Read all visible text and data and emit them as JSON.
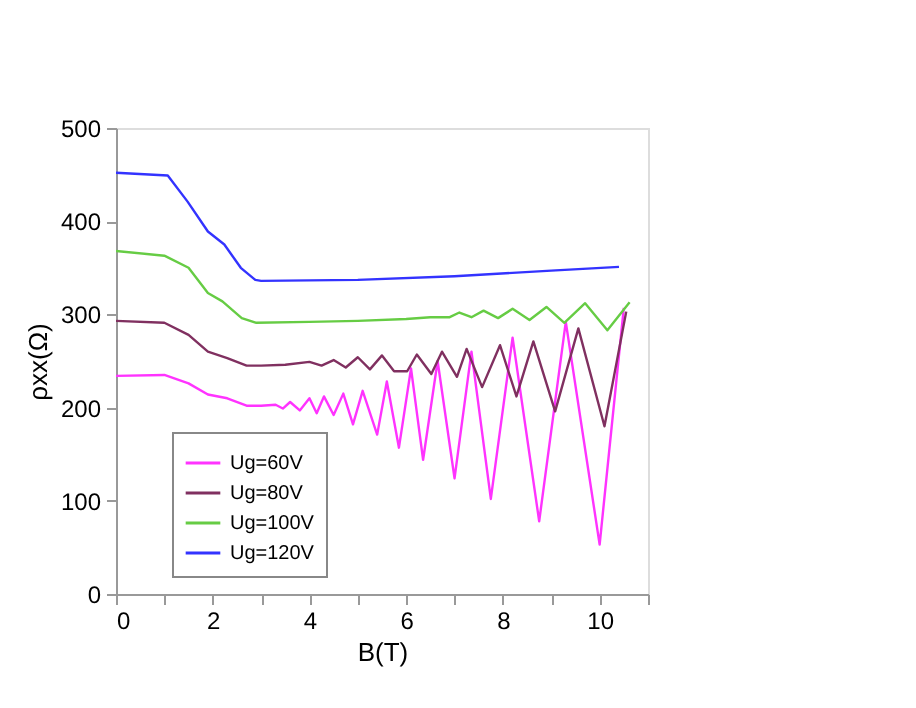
{
  "chart_data": {
    "type": "line",
    "xlabel": "B(T)",
    "ylabel": "ρxx(Ω)",
    "xlim": [
      0,
      11
    ],
    "ylim": [
      0,
      500
    ],
    "xticks": [
      0,
      {
        "value": 1,
        "label": null
      },
      2,
      {
        "value": 3,
        "label": null
      },
      4,
      {
        "value": 5,
        "label": null
      },
      6,
      {
        "value": 7,
        "label": null
      },
      8,
      {
        "value": 9,
        "label": null
      },
      10,
      {
        "value": 11,
        "label": null
      }
    ],
    "yticks": [
      0,
      100,
      200,
      300,
      400,
      500
    ],
    "grid": false,
    "legend": "bottom left",
    "series": [
      {
        "name": "Ug=60V",
        "color": "#ff33ff",
        "x": [
          0,
          1,
          1.5,
          1.9,
          2.3,
          2.7,
          3.0,
          3.3,
          3.45,
          3.6,
          3.8,
          4.0,
          4.15,
          4.3,
          4.5,
          4.7,
          4.9,
          5.1,
          5.4,
          5.6,
          5.85,
          6.1,
          6.35,
          6.65,
          7.0,
          7.35,
          7.75,
          8.2,
          8.75,
          9.3,
          10.0,
          10.5
        ],
        "values": [
          234,
          235,
          226,
          214,
          210,
          202,
          202,
          203,
          199,
          206,
          197,
          210,
          194,
          212,
          192,
          215,
          182,
          218,
          171,
          228,
          157,
          242,
          144,
          250,
          124,
          260,
          102,
          275,
          78,
          292,
          53,
          307
        ]
      },
      {
        "name": "Ug=80V",
        "color": "#803060",
        "x": [
          0,
          1,
          1.5,
          1.9,
          2.3,
          2.7,
          3.0,
          3.5,
          4.0,
          4.25,
          4.5,
          4.75,
          5.0,
          5.25,
          5.5,
          5.75,
          6.02,
          6.22,
          6.52,
          6.74,
          7.05,
          7.25,
          7.57,
          7.94,
          8.28,
          8.63,
          9.08,
          9.56,
          10.1,
          10.55
        ],
        "values": [
          293,
          291,
          278,
          260,
          253,
          245,
          245,
          246,
          249,
          245,
          251,
          243,
          254,
          241,
          256,
          239,
          239,
          257,
          236,
          260,
          233,
          263,
          222,
          267,
          212,
          271,
          196,
          285,
          180,
          303
        ]
      },
      {
        "name": "Ug=100V",
        "color": "#66cc44",
        "x": [
          0,
          1,
          1.5,
          1.9,
          2.2,
          2.6,
          2.9,
          4.0,
          5.0,
          6.0,
          6.5,
          6.9,
          7.1,
          7.35,
          7.6,
          7.9,
          8.2,
          8.55,
          8.9,
          9.27,
          9.7,
          10.16,
          10.62
        ],
        "values": [
          368,
          363,
          350,
          323,
          314,
          296,
          291,
          292,
          293,
          295,
          297,
          297,
          302,
          297,
          304,
          296,
          306,
          294,
          308,
          291,
          312,
          283,
          313
        ]
      },
      {
        "name": "Ug=120V",
        "color": "#3333ff",
        "x": [
          0,
          1.07,
          1.48,
          1.9,
          2.24,
          2.58,
          2.88,
          3.0,
          5.0,
          7.0,
          9.0,
          10.4
        ],
        "values": [
          452,
          449,
          421,
          389,
          375,
          350,
          337,
          336,
          337,
          341,
          347,
          351
        ]
      }
    ]
  }
}
